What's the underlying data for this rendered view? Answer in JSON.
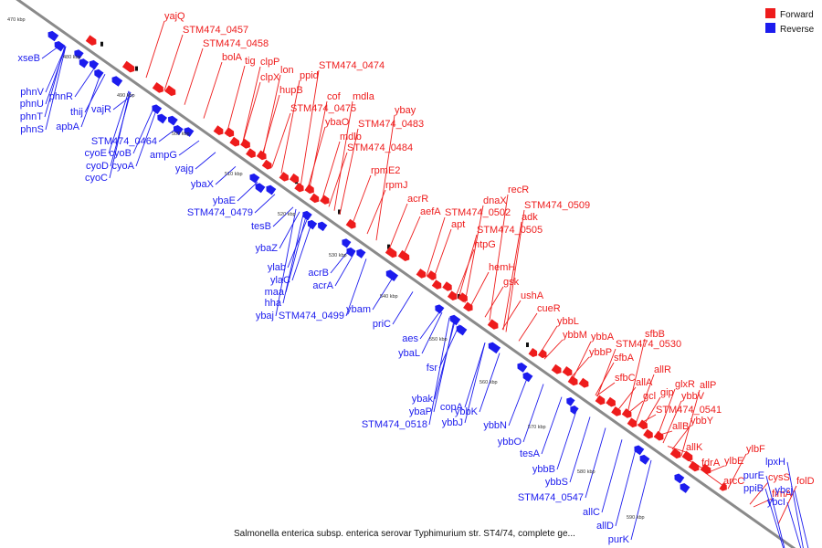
{
  "colors": {
    "forward": "#ee1c1c",
    "reverse": "#1c1cee",
    "backbone": "#8a8a8a",
    "marker": "#111111"
  },
  "legend": [
    {
      "label": "Forward",
      "strand": "forward"
    },
    {
      "label": "Reverse",
      "strand": "reverse"
    }
  ],
  "caption": "Salmonella enterica subsp. enterica serovar Typhimurium str. ST4/74, complete ge...",
  "ticks": [
    "470 kbp",
    "480 kbp",
    "490 kbp",
    "500 kbp",
    "510 kbp",
    "520 kbp",
    "530 kbp",
    "540 kbp",
    "550 kbp",
    "560 kbp",
    "570 kbp",
    "580 kbp",
    "590 kbp"
  ],
  "forward_genes": [
    "yajQ",
    "STM474_0457",
    "STM474_0458",
    "bolA",
    "tig",
    "clpP",
    "clpX",
    "lon",
    "hupB",
    "ppid",
    "STM474_0474",
    "STM474_0475",
    "cof",
    "mdla",
    "ybay",
    "ybaO",
    "STM474_0483",
    "mdlb",
    "STM474_0484",
    "rpmE2",
    "rpmJ",
    "acrR",
    "recR",
    "dnaX",
    "STM474_0509",
    "aefA",
    "STM474_0502",
    "adk",
    "apt",
    "STM474_0505",
    "htpG",
    "hemH",
    "gsk",
    "ushA",
    "cueR",
    "ybbL",
    "ybbM",
    "ybbA",
    "sfbB",
    "STM474_0530",
    "ybbP",
    "sfbA",
    "allR",
    "sfbC",
    "allA",
    "glxR",
    "allP",
    "gcl",
    "gip",
    "ybbV",
    "STM474_0541",
    "ybbY",
    "allB",
    "allK",
    "ylbF",
    "fdrA",
    "ylbE",
    "arcC",
    "cysS",
    "folD",
    "fimA"
  ],
  "reverse_genes": [
    "xseB",
    "phnV",
    "phnR",
    "phnU",
    "phnT",
    "thij",
    "vajR",
    "phnS",
    "apbA",
    "STM474_0464",
    "cyoE",
    "cyoB",
    "cyoD",
    "cyoA",
    "ampG",
    "cyoC",
    "yajg",
    "ybaX",
    "ybaE",
    "STM474_0479",
    "tesB",
    "ybaZ",
    "ylab",
    "acrB",
    "ylaC",
    "maa",
    "acrA",
    "hha",
    "ybaj",
    "STM474_0499",
    "ybam",
    "priC",
    "aes",
    "ybaL",
    "fsr",
    "ybak",
    "copA",
    "ybaP",
    "ybbK",
    "STM474_0518",
    "ybbJ",
    "ybbN",
    "ybbO",
    "tesA",
    "ybbB",
    "ybbS",
    "STM474_0547",
    "allC",
    "allD",
    "purK",
    "lpxH",
    "purE",
    "ppiB",
    "ybcj",
    "ybcI"
  ]
}
